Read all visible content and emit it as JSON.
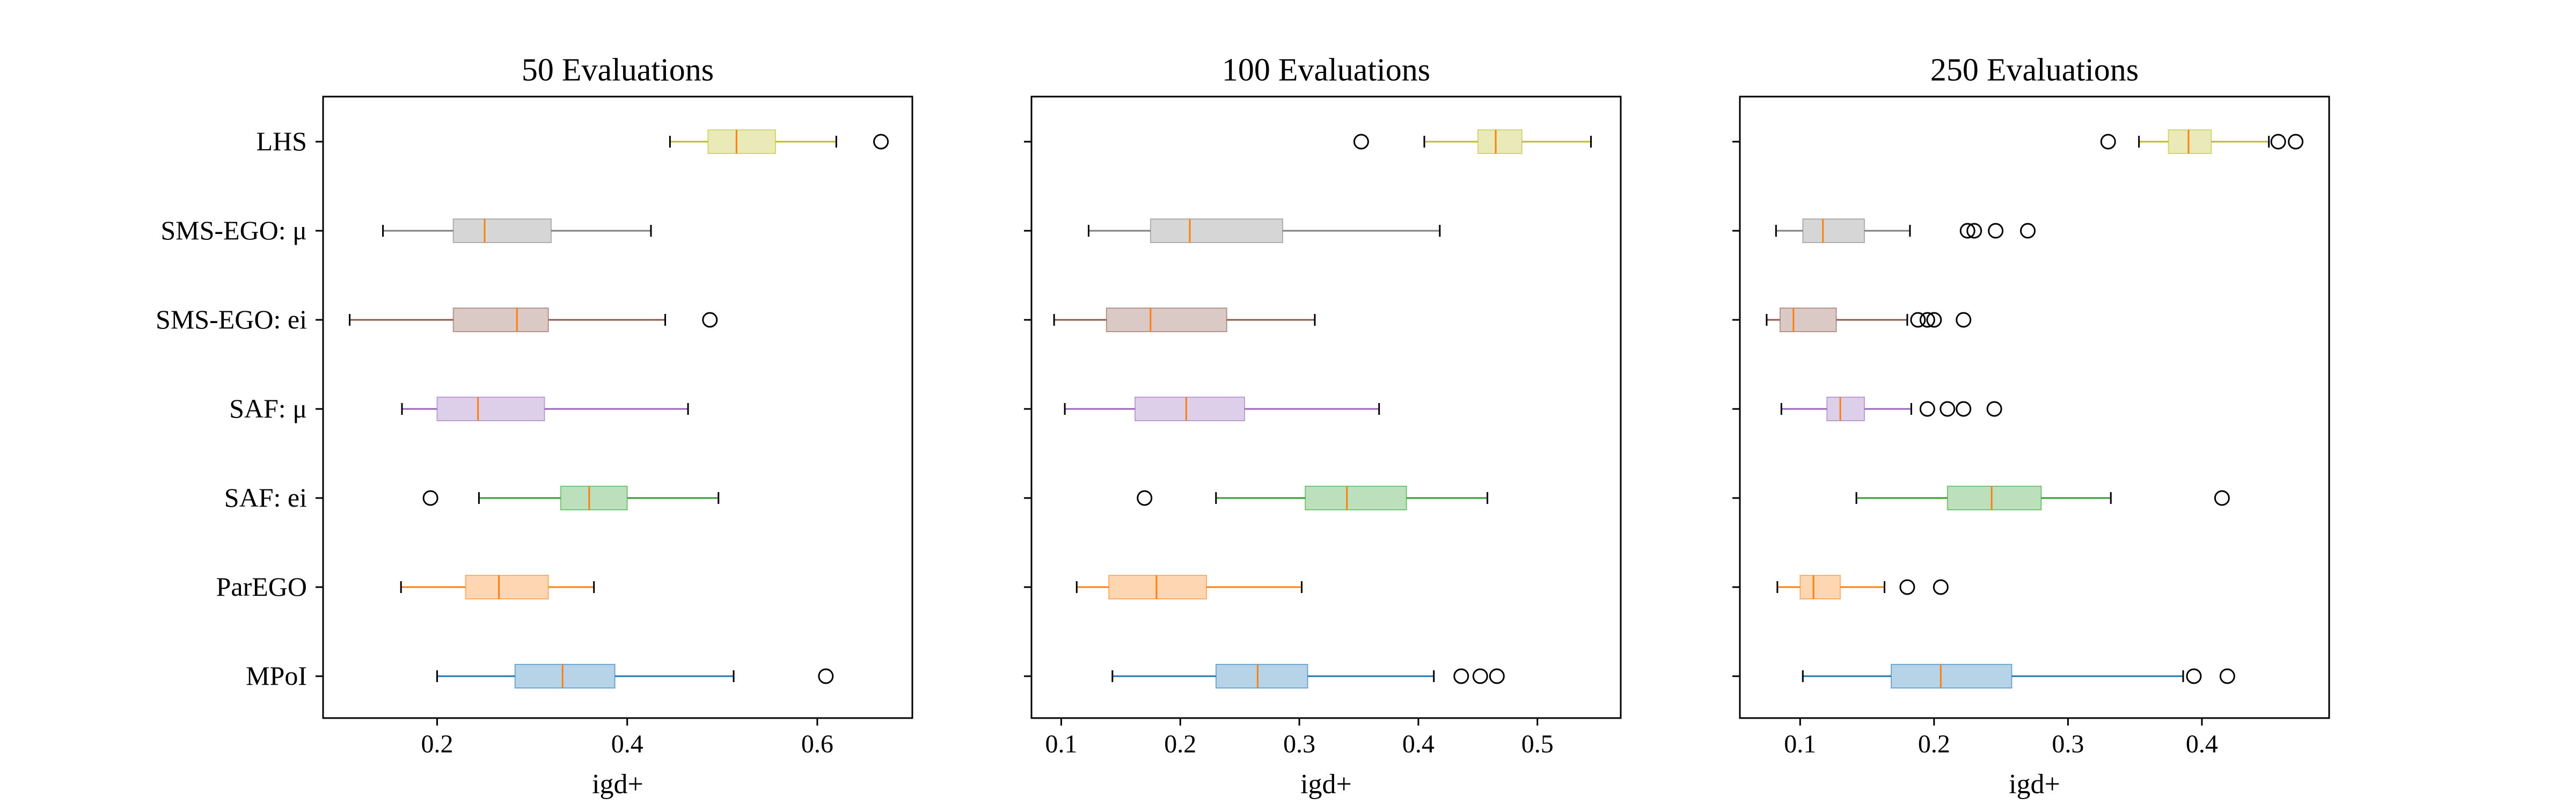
{
  "chart_data": [
    {
      "type": "boxplot",
      "orientation": "horizontal",
      "title": "50 Evaluations",
      "xlabel": "igd+",
      "xlim": [
        0.08,
        0.7
      ],
      "xticks": [
        0.2,
        0.4,
        0.6
      ],
      "xtick_labels": [
        "0.2",
        "0.4",
        "0.6"
      ],
      "categories": [
        "MPoI",
        "ParEGO",
        "SAF: ei",
        "SAF: μ",
        "SMS-EGO: ei",
        "SMS-EGO: μ",
        "LHS"
      ],
      "boxes": [
        {
          "name": "MPoI",
          "whislo": 0.2,
          "q1": 0.282,
          "med": 0.332,
          "q3": 0.387,
          "whishi": 0.512,
          "fliers": [
            0.609
          ]
        },
        {
          "name": "ParEGO",
          "whislo": 0.162,
          "q1": 0.23,
          "med": 0.265,
          "q3": 0.317,
          "whishi": 0.365,
          "fliers": []
        },
        {
          "name": "SAF: ei",
          "whislo": 0.244,
          "q1": 0.33,
          "med": 0.36,
          "q3": 0.4,
          "whishi": 0.496,
          "fliers": [
            0.193
          ]
        },
        {
          "name": "SAF: μ",
          "whislo": 0.163,
          "q1": 0.2,
          "med": 0.243,
          "q3": 0.313,
          "whishi": 0.464,
          "fliers": []
        },
        {
          "name": "SMS-EGO: ei",
          "whislo": 0.108,
          "q1": 0.217,
          "med": 0.284,
          "q3": 0.317,
          "whishi": 0.44,
          "fliers": [
            0.487
          ]
        },
        {
          "name": "SMS-EGO: μ",
          "whislo": 0.143,
          "q1": 0.217,
          "med": 0.25,
          "q3": 0.32,
          "whishi": 0.425,
          "fliers": []
        },
        {
          "name": "LHS",
          "whislo": 0.445,
          "q1": 0.485,
          "med": 0.515,
          "q3": 0.556,
          "whishi": 0.62,
          "fliers": [
            0.667
          ]
        }
      ]
    },
    {
      "type": "boxplot",
      "orientation": "horizontal",
      "title": "100 Evaluations",
      "xlabel": "igd+",
      "xlim": [
        0.075,
        0.57
      ],
      "xticks": [
        0.1,
        0.2,
        0.3,
        0.4,
        0.5
      ],
      "xtick_labels": [
        "0.1",
        "0.2",
        "0.3",
        "0.4",
        "0.5"
      ],
      "categories": [
        "MPoI",
        "ParEGO",
        "SAF: ei",
        "SAF: μ",
        "SMS-EGO: ei",
        "SMS-EGO: μ",
        "LHS"
      ],
      "boxes": [
        {
          "name": "MPoI",
          "whislo": 0.143,
          "q1": 0.23,
          "med": 0.265,
          "q3": 0.307,
          "whishi": 0.413,
          "fliers": [
            0.436,
            0.452,
            0.466
          ]
        },
        {
          "name": "ParEGO",
          "whislo": 0.113,
          "q1": 0.14,
          "med": 0.18,
          "q3": 0.222,
          "whishi": 0.302,
          "fliers": []
        },
        {
          "name": "SAF: ei",
          "whislo": 0.23,
          "q1": 0.305,
          "med": 0.34,
          "q3": 0.39,
          "whishi": 0.458,
          "fliers": [
            0.17
          ]
        },
        {
          "name": "SAF: μ",
          "whislo": 0.103,
          "q1": 0.162,
          "med": 0.205,
          "q3": 0.254,
          "whishi": 0.367,
          "fliers": []
        },
        {
          "name": "SMS-EGO: ei",
          "whislo": 0.094,
          "q1": 0.138,
          "med": 0.175,
          "q3": 0.239,
          "whishi": 0.313,
          "fliers": []
        },
        {
          "name": "SMS-EGO: μ",
          "whislo": 0.123,
          "q1": 0.175,
          "med": 0.208,
          "q3": 0.286,
          "whishi": 0.418,
          "fliers": []
        },
        {
          "name": "LHS",
          "whislo": 0.405,
          "q1": 0.45,
          "med": 0.465,
          "q3": 0.487,
          "whishi": 0.545,
          "fliers": [
            0.352
          ]
        }
      ]
    },
    {
      "type": "boxplot",
      "orientation": "horizontal",
      "title": "250 Evaluations",
      "xlabel": "igd+",
      "xlim": [
        0.055,
        0.495
      ],
      "xticks": [
        0.1,
        0.2,
        0.3,
        0.4
      ],
      "xtick_labels": [
        "0.1",
        "0.2",
        "0.3",
        "0.4"
      ],
      "categories": [
        "MPoI",
        "ParEGO",
        "SAF: ei",
        "SAF: μ",
        "SMS-EGO: ei",
        "SMS-EGO: μ",
        "LHS"
      ],
      "boxes": [
        {
          "name": "MPoI",
          "whislo": 0.102,
          "q1": 0.168,
          "med": 0.205,
          "q3": 0.258,
          "whishi": 0.386,
          "fliers": [
            0.394,
            0.419
          ]
        },
        {
          "name": "ParEGO",
          "whislo": 0.083,
          "q1": 0.1,
          "med": 0.11,
          "q3": 0.13,
          "whishi": 0.163,
          "fliers": [
            0.18,
            0.205
          ]
        },
        {
          "name": "SAF: ei",
          "whislo": 0.142,
          "q1": 0.21,
          "med": 0.243,
          "q3": 0.28,
          "whishi": 0.332,
          "fliers": [
            0.415
          ]
        },
        {
          "name": "SAF: μ",
          "whislo": 0.086,
          "q1": 0.12,
          "med": 0.13,
          "q3": 0.148,
          "whishi": 0.183,
          "fliers": [
            0.195,
            0.21,
            0.222,
            0.245
          ]
        },
        {
          "name": "SMS-EGO: ei",
          "whislo": 0.075,
          "q1": 0.085,
          "med": 0.095,
          "q3": 0.127,
          "whishi": 0.18,
          "fliers": [
            0.188,
            0.195,
            0.2,
            0.222
          ]
        },
        {
          "name": "SMS-EGO: μ",
          "whislo": 0.082,
          "q1": 0.102,
          "med": 0.117,
          "q3": 0.148,
          "whishi": 0.182,
          "fliers": [
            0.225,
            0.23,
            0.246,
            0.27
          ]
        },
        {
          "name": "LHS",
          "whislo": 0.353,
          "q1": 0.375,
          "med": 0.39,
          "q3": 0.407,
          "whishi": 0.45,
          "fliers": [
            0.33,
            0.457,
            0.47
          ]
        }
      ]
    }
  ],
  "colors": {
    "MPoI": "#1f77b4",
    "ParEGO": "#ff7f0e",
    "SAF: ei": "#2ca02c",
    "SAF: μ": "#9467bd",
    "SMS-EGO: ei": "#8c564b",
    "SMS-EGO: μ": "#7f7f7f",
    "LHS": "#bcbd22",
    "median": "#ff7f0e",
    "axis": "#000000",
    "flier": "#000000"
  }
}
